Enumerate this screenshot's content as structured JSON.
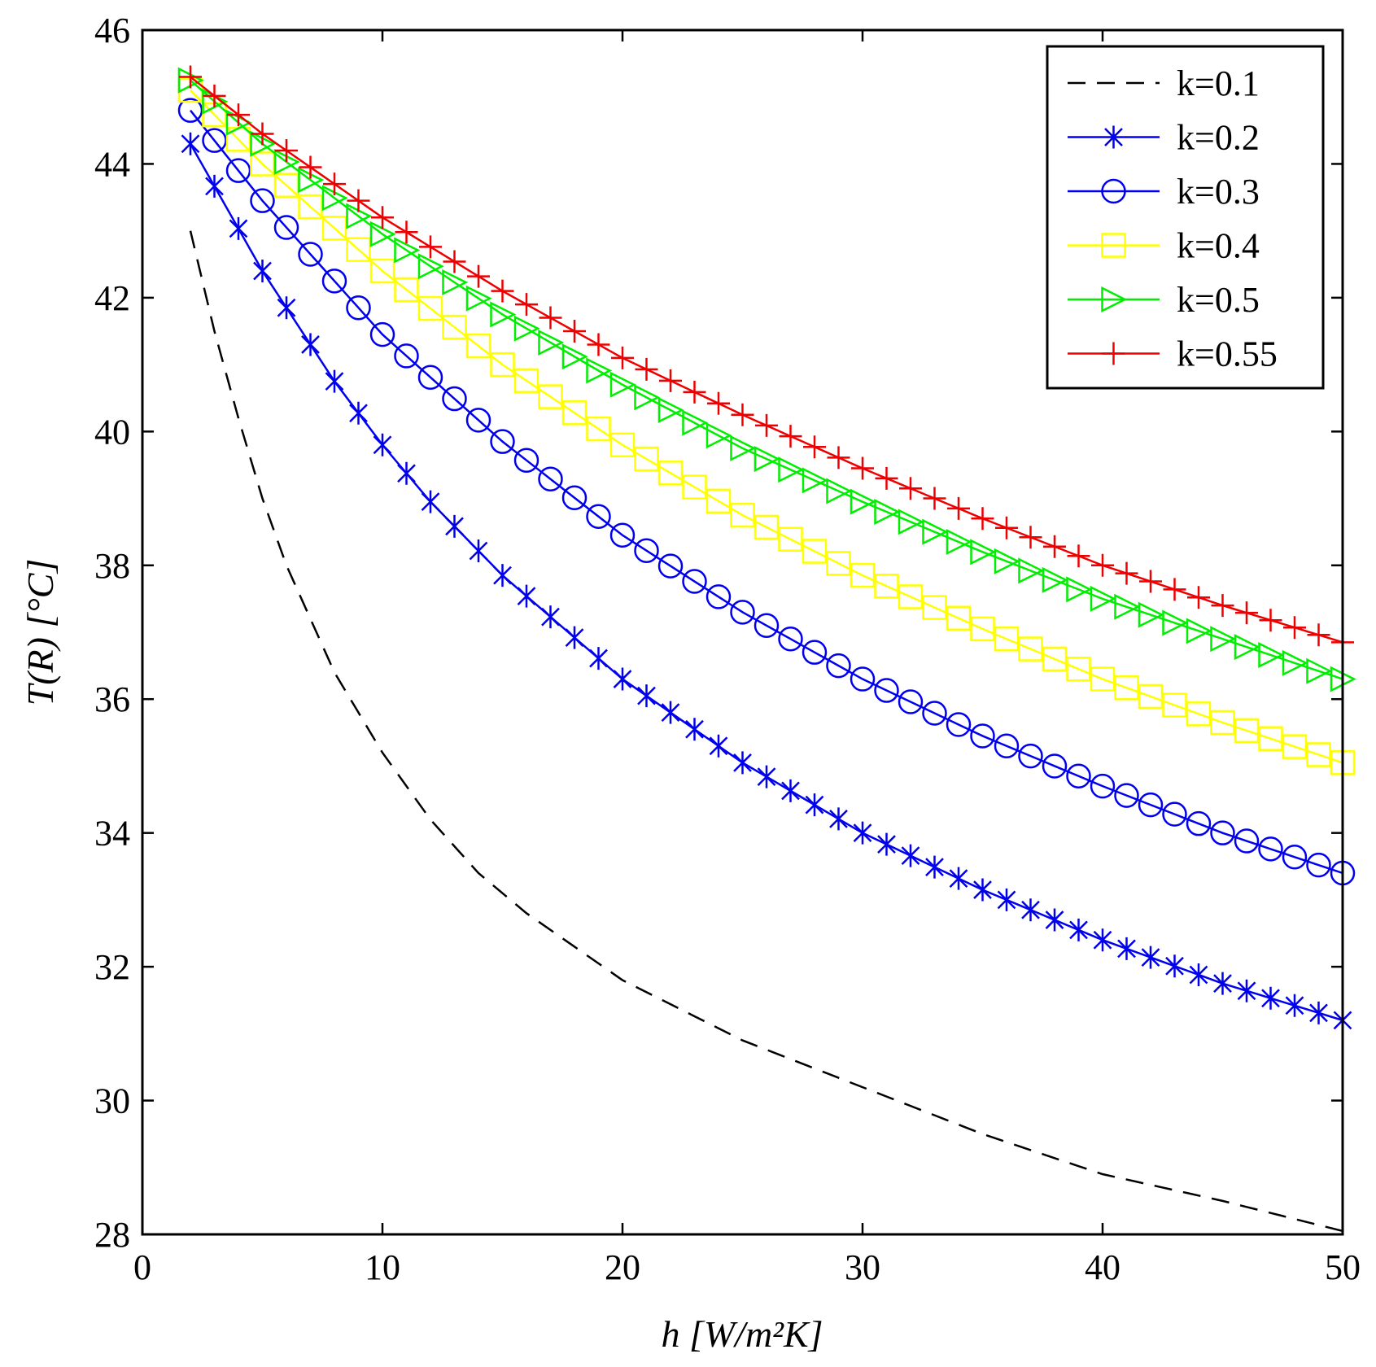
{
  "chart_data": {
    "type": "line",
    "title": "",
    "xlabel": "h  [W/m²K]",
    "ylabel": "T(R) [°C]",
    "xlim": [
      0,
      50
    ],
    "ylim": [
      28,
      46
    ],
    "x_ticks": [
      0,
      10,
      20,
      30,
      40,
      50
    ],
    "y_ticks": [
      28,
      30,
      32,
      34,
      36,
      38,
      40,
      42,
      44,
      46
    ],
    "grid": false,
    "legend_position": "top-right",
    "x_start": 2,
    "x_end": 50,
    "x_step": 1,
    "series": [
      {
        "name": "k=0.1",
        "label": "k=0.1",
        "color": "#000000",
        "line": "dashed",
        "marker": "none",
        "points": [
          [
            2,
            43.0
          ],
          [
            3,
            41.5
          ],
          [
            4,
            40.2
          ],
          [
            5,
            39.0
          ],
          [
            6,
            38.0
          ],
          [
            8,
            36.4
          ],
          [
            10,
            35.2
          ],
          [
            12,
            34.2
          ],
          [
            14,
            33.4
          ],
          [
            16,
            32.8
          ],
          [
            20,
            31.8
          ],
          [
            25,
            30.9
          ],
          [
            30,
            30.2
          ],
          [
            35,
            29.5
          ],
          [
            40,
            28.9
          ],
          [
            45,
            28.5
          ],
          [
            50,
            28.05
          ]
        ]
      },
      {
        "name": "k=0.2",
        "label": "k=0.2",
        "color": "#0000ee",
        "line": "solid",
        "marker": "asterisk",
        "points": [
          [
            2,
            44.3
          ],
          [
            5,
            42.4
          ],
          [
            8,
            40.75
          ],
          [
            10,
            39.8
          ],
          [
            12,
            38.95
          ],
          [
            15,
            37.85
          ],
          [
            20,
            36.3
          ],
          [
            25,
            35.05
          ],
          [
            30,
            34.0
          ],
          [
            35,
            33.15
          ],
          [
            40,
            32.4
          ],
          [
            45,
            31.75
          ],
          [
            50,
            31.2
          ]
        ]
      },
      {
        "name": "k=0.3",
        "label": "k=0.3",
        "color": "#0000ee",
        "line": "solid",
        "marker": "circle",
        "points": [
          [
            2,
            44.8
          ],
          [
            5,
            43.45
          ],
          [
            10,
            41.45
          ],
          [
            15,
            39.85
          ],
          [
            20,
            38.45
          ],
          [
            25,
            37.3
          ],
          [
            30,
            36.3
          ],
          [
            35,
            35.45
          ],
          [
            40,
            34.7
          ],
          [
            45,
            34.0
          ],
          [
            50,
            33.4
          ]
        ]
      },
      {
        "name": "k=0.4",
        "label": "k=0.4",
        "color": "#ffff00",
        "line": "solid",
        "marker": "square",
        "points": [
          [
            2,
            45.1
          ],
          [
            5,
            44.0
          ],
          [
            10,
            42.4
          ],
          [
            15,
            41.0
          ],
          [
            20,
            39.8
          ],
          [
            25,
            38.75
          ],
          [
            30,
            37.85
          ],
          [
            35,
            37.05
          ],
          [
            40,
            36.3
          ],
          [
            45,
            35.65
          ],
          [
            50,
            35.05
          ]
        ]
      },
      {
        "name": "k=0.5",
        "label": "k=0.5",
        "color": "#00ee00",
        "line": "solid",
        "marker": "triangle-right",
        "points": [
          [
            2,
            45.25
          ],
          [
            5,
            44.3
          ],
          [
            10,
            42.95
          ],
          [
            15,
            41.75
          ],
          [
            20,
            40.7
          ],
          [
            25,
            39.75
          ],
          [
            30,
            38.95
          ],
          [
            35,
            38.2
          ],
          [
            40,
            37.5
          ],
          [
            45,
            36.9
          ],
          [
            50,
            36.3
          ]
        ]
      },
      {
        "name": "k=0.55",
        "label": "k=0.55",
        "color": "#ee0000",
        "line": "solid",
        "marker": "plus",
        "points": [
          [
            2,
            45.3
          ],
          [
            5,
            44.45
          ],
          [
            10,
            43.2
          ],
          [
            15,
            42.1
          ],
          [
            20,
            41.1
          ],
          [
            25,
            40.25
          ],
          [
            30,
            39.45
          ],
          [
            35,
            38.7
          ],
          [
            40,
            38.0
          ],
          [
            45,
            37.4
          ],
          [
            50,
            36.85
          ]
        ]
      }
    ]
  }
}
